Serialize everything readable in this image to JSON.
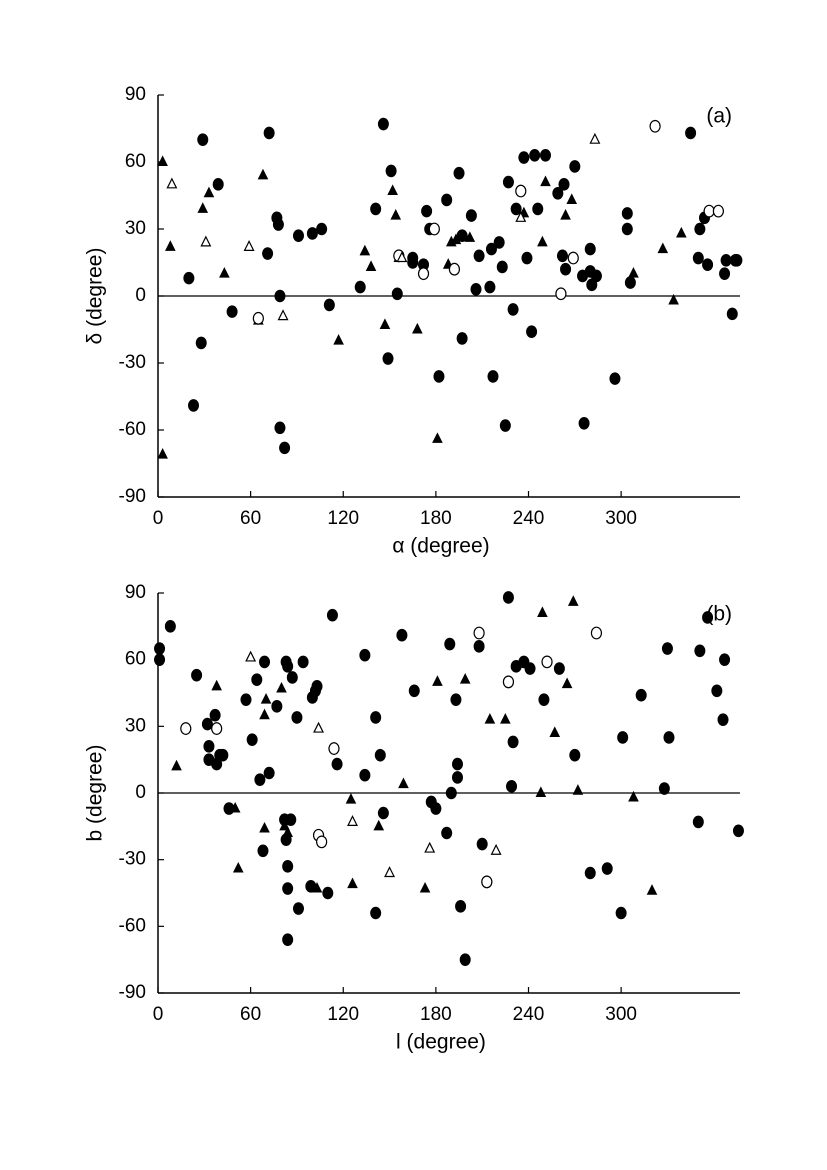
{
  "chart_data": [
    {
      "type": "scatter",
      "annotation": "(a)",
      "xlabel": "α (degree)",
      "ylabel": "δ (degree)",
      "xlim": [
        0,
        377
      ],
      "ylim": [
        -90,
        90
      ],
      "xticks": [
        0,
        60,
        120,
        180,
        240,
        300
      ],
      "yticks": [
        -90,
        -60,
        -30,
        0,
        30,
        60,
        90
      ],
      "zero_line": true,
      "series": [
        {
          "marker": "circle",
          "filled": true,
          "color": "#000000",
          "x": [
            29,
            72,
            39,
            20,
            28,
            23,
            48,
            71,
            77,
            78,
            79,
            79,
            82,
            91,
            100,
            106,
            111,
            131,
            141,
            146,
            149,
            151,
            155,
            165,
            165,
            172,
            176,
            174,
            182,
            187,
            195,
            197,
            197,
            203,
            206,
            208,
            215,
            216,
            217,
            221,
            223,
            225,
            227,
            230,
            232,
            237,
            239,
            242,
            244,
            246,
            251,
            259,
            263,
            262,
            264,
            270,
            275,
            276,
            280,
            280,
            281,
            284,
            296,
            304,
            304,
            306,
            345,
            350,
            351,
            354,
            356,
            367,
            368,
            374,
            372,
            375
          ],
          "values": [
            70,
            73,
            50,
            8,
            -21,
            -49,
            -7,
            19,
            35,
            32,
            0,
            -59,
            -68,
            27,
            28,
            30,
            -4,
            4,
            39,
            77,
            -28,
            56,
            1,
            17,
            15,
            14,
            30,
            38,
            -36,
            43,
            55,
            27,
            -19,
            36,
            3,
            18,
            4,
            21,
            -36,
            24,
            13,
            -58,
            51,
            -6,
            39,
            62,
            17,
            -16,
            63,
            39,
            63,
            46,
            50,
            18,
            12,
            58,
            9,
            -57,
            11,
            21,
            5,
            9,
            -37,
            37,
            30,
            6,
            73,
            17,
            30,
            35,
            14,
            10,
            16,
            16,
            -8,
            16
          ]
        },
        {
          "marker": "triangle",
          "filled": true,
          "color": "#000000",
          "x": [
            3,
            8,
            3,
            29,
            33,
            43,
            65,
            68,
            117,
            134,
            138,
            147,
            152,
            154,
            156,
            168,
            181,
            188,
            190,
            193,
            202,
            237,
            249,
            251,
            264,
            268,
            308,
            327,
            334,
            339
          ],
          "values": [
            60,
            22,
            -71,
            39,
            46,
            10,
            -11,
            54,
            -20,
            20,
            13,
            -13,
            47,
            36,
            17,
            -15,
            -64,
            14,
            24,
            25,
            26,
            37,
            24,
            51,
            36,
            43,
            10,
            21,
            -2,
            28
          ]
        },
        {
          "marker": "circle",
          "filled": false,
          "color": "#000000",
          "x": [
            65,
            156,
            172,
            179,
            192,
            235,
            261,
            269,
            322,
            357,
            363
          ],
          "values": [
            -10,
            18,
            10,
            30,
            12,
            47,
            1,
            17,
            76,
            38,
            38
          ]
        },
        {
          "marker": "triangle",
          "filled": false,
          "color": "#000000",
          "x": [
            9,
            31,
            59,
            81,
            158,
            235,
            283
          ],
          "values": [
            50,
            24,
            22,
            -9,
            17,
            35,
            70
          ]
        }
      ]
    },
    {
      "type": "scatter",
      "annotation": "(b)",
      "xlabel": "l (degree)",
      "ylabel": "b (degree)",
      "xlim": [
        0,
        377
      ],
      "ylim": [
        -90,
        90
      ],
      "xticks": [
        0,
        60,
        120,
        180,
        240,
        300
      ],
      "yticks": [
        -90,
        -60,
        -30,
        0,
        30,
        60,
        90
      ],
      "zero_line": true,
      "series": [
        {
          "marker": "circle",
          "filled": true,
          "color": "#000000",
          "x": [
            1,
            1,
            8,
            25,
            32,
            33,
            33,
            37,
            38,
            40,
            42,
            46,
            57,
            61,
            64,
            66,
            68,
            69,
            72,
            77,
            83,
            84,
            82,
            86,
            83,
            84,
            84,
            84,
            87,
            90,
            91,
            94,
            99,
            100,
            102,
            103,
            110,
            113,
            116,
            134,
            134,
            141,
            141,
            144,
            146,
            158,
            166,
            177,
            180,
            187,
            189,
            190,
            193,
            194,
            194,
            196,
            199,
            208,
            210,
            213,
            227,
            227,
            229,
            230,
            232,
            237,
            241,
            250,
            260,
            270,
            280,
            291,
            301,
            300,
            313,
            328,
            330,
            331,
            350,
            351,
            356,
            362,
            366,
            367,
            376
          ],
          "values": [
            65,
            60,
            75,
            53,
            31,
            21,
            15,
            35,
            13,
            17,
            17,
            -7,
            42,
            24,
            51,
            6,
            -26,
            59,
            9,
            39,
            59,
            57,
            -12,
            -12,
            -21,
            -33,
            -43,
            -66,
            52,
            34,
            -52,
            59,
            -42,
            43,
            46,
            48,
            -45,
            80,
            13,
            8,
            62,
            34,
            -54,
            17,
            -9,
            71,
            46,
            -4,
            -7,
            -18,
            67,
            0,
            42,
            7,
            13,
            -51,
            -75,
            66,
            -23,
            -40,
            88,
            50,
            3,
            23,
            57,
            59,
            56,
            42,
            56,
            17,
            -36,
            -34,
            25,
            -54,
            44,
            2,
            65,
            25,
            -13,
            64,
            79,
            46,
            33,
            60,
            -17
          ]
        },
        {
          "marker": "triangle",
          "filled": true,
          "color": "#000000",
          "x": [
            12,
            38,
            50,
            52,
            69,
            69,
            70,
            82,
            84,
            80,
            103,
            125,
            126,
            143,
            159,
            173,
            181,
            199,
            215,
            225,
            248,
            249,
            257,
            265,
            269,
            272,
            308,
            320
          ],
          "values": [
            12,
            48,
            -7,
            -34,
            -16,
            35,
            42,
            -15,
            -18,
            47,
            -43,
            -3,
            -41,
            -15,
            4,
            -43,
            50,
            51,
            33,
            33,
            0,
            81,
            27,
            49,
            86,
            1,
            -2,
            -44
          ]
        },
        {
          "marker": "circle",
          "filled": false,
          "color": "#000000",
          "x": [
            18,
            38,
            114,
            104,
            106,
            208,
            227,
            213,
            252,
            284
          ],
          "values": [
            29,
            29,
            20,
            -19,
            -22,
            72,
            50,
            -40,
            59,
            72
          ]
        },
        {
          "marker": "triangle",
          "filled": false,
          "color": "#000000",
          "x": [
            60,
            104,
            126,
            150,
            176,
            219
          ],
          "values": [
            61,
            29,
            -13,
            -36,
            -25,
            -26
          ]
        }
      ]
    }
  ]
}
